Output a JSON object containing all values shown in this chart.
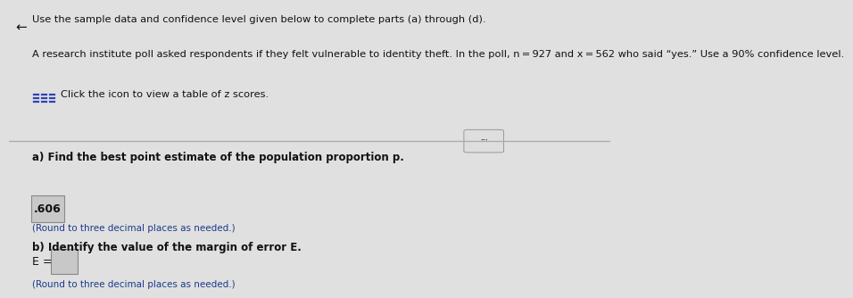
{
  "bg_color": "#e0e0e0",
  "title_text": "Use the sample data and confidence level given below to complete parts (a) through (d).",
  "body_text": "A research institute poll asked respondents if they felt vulnerable to identity theft. In the poll, n = 927 and x = 562 who said “yes.” Use a 90% confidence level.",
  "click_text": "Click the icon to view a table of z scores.",
  "part_a_label": "a) Find the best point estimate of the population proportion p.",
  "part_a_answer": ".606",
  "part_a_note": "(Round to three decimal places as needed.)",
  "part_b_label": "b) Identify the value of the margin of error E.",
  "part_b_eq": "E =",
  "part_b_note": "(Round to three decimal places as needed.)",
  "font_color": "#111111",
  "blue_color": "#1a3a8a",
  "icon_color": "#3344aa",
  "divider_color": "#aaaaaa",
  "box_color": "#c8c8c8",
  "box_edge": "#888888",
  "small_font": 7.5,
  "body_font": 8.2,
  "bold_font": 8.5,
  "answer_font": 9.0
}
